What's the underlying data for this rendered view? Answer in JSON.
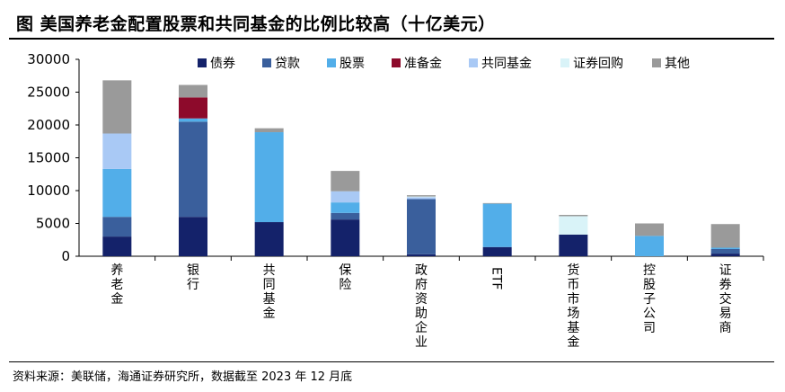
{
  "header": {
    "title": "图  美国养老金配置股票和共同基金的比例比较高（十亿美元）"
  },
  "footer": {
    "source": "资料来源：美联储，海通证券研究所，数据截至 2023 年 12 月底"
  },
  "chart_data": {
    "type": "bar",
    "stacked": true,
    "title": "美国养老金配置股票和共同基金的比例比较高（十亿美元）",
    "xlabel": "",
    "ylabel": "",
    "ylim": [
      0,
      30000
    ],
    "yticks": [
      "0",
      "5000",
      "10000",
      "15000",
      "20000",
      "25000",
      "30000"
    ],
    "grid": false,
    "legend_position": "top",
    "categories": [
      "养老金",
      "银行",
      "共同基金",
      "保险",
      "政府资助企业",
      "ETF",
      "货币市场基金",
      "控股子公司",
      "证券交易商"
    ],
    "series": [
      {
        "name": "债券",
        "color": "#14226a",
        "values": [
          3000,
          6000,
          5200,
          5600,
          300,
          1400,
          3300,
          0,
          400
        ]
      },
      {
        "name": "贷款",
        "color": "#3a5f9c",
        "values": [
          3000,
          14500,
          0,
          1000,
          8400,
          0,
          0,
          0,
          700
        ]
      },
      {
        "name": "股票",
        "color": "#52aee9",
        "values": [
          7300,
          500,
          13700,
          1600,
          0,
          6600,
          0,
          3100,
          200
        ]
      },
      {
        "name": "准备金",
        "color": "#8d0a2b",
        "values": [
          0,
          3200,
          0,
          0,
          0,
          0,
          0,
          0,
          0
        ]
      },
      {
        "name": "共同基金",
        "color": "#a9c9f5",
        "values": [
          5400,
          0,
          0,
          1700,
          300,
          0,
          0,
          0,
          0
        ]
      },
      {
        "name": "证券回购",
        "color": "#d9f3f8",
        "values": [
          0,
          0,
          0,
          0,
          100,
          0,
          2800,
          0,
          0
        ]
      },
      {
        "name": "其他",
        "color": "#9a9a9a",
        "values": [
          8100,
          1900,
          600,
          3100,
          200,
          100,
          200,
          1900,
          3600
        ]
      }
    ]
  }
}
